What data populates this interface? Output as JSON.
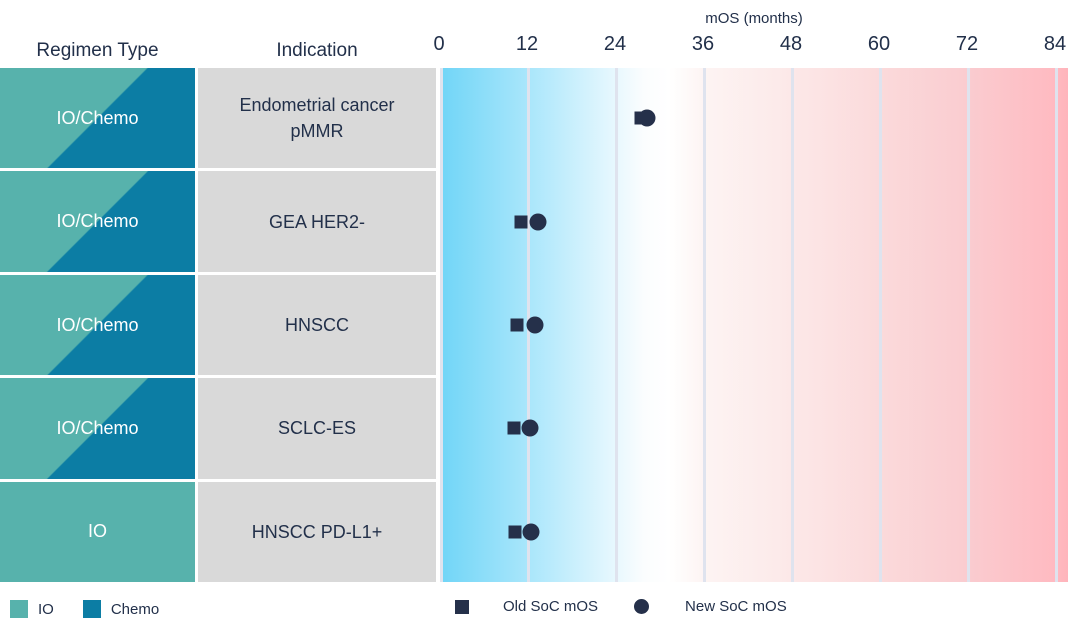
{
  "table": {
    "regimen_header": "Regimen Type",
    "indication_header": "Indication"
  },
  "rows": [
    {
      "regimen": "IO/Chemo",
      "type": "io_chemo",
      "indication": "Endometrial cancer pMMR"
    },
    {
      "regimen": "IO/Chemo",
      "type": "io_chemo",
      "indication": "GEA HER2-"
    },
    {
      "regimen": "IO/Chemo",
      "type": "io_chemo",
      "indication": "HNSCC"
    },
    {
      "regimen": "IO/Chemo",
      "type": "io_chemo",
      "indication": "SCLC-ES"
    },
    {
      "regimen": "IO",
      "type": "io",
      "indication": "HNSCC PD-L1+"
    }
  ],
  "legend": {
    "io_label": "IO",
    "chemo_label": "Chemo",
    "old_soc_label": "Old SoC mOS",
    "new_soc_label": "New SoC mOS"
  },
  "colors": {
    "io_teal": "#57B2AC",
    "chemo_blue": "#0C7DA4",
    "indication_gray": "#D9D9D9",
    "marker_navy": "#25304A",
    "text_navy": "#22304A",
    "gridline": "#DFE3EE",
    "gradient_left_cyan": "#70D5F7",
    "gradient_right_pink": "#FFB4BB"
  },
  "chart_data": {
    "type": "scatter",
    "orientation": "horizontal",
    "title": "mOS (months)",
    "x_axis": {
      "title": "mOS (months)",
      "ticks": [
        0,
        12,
        24,
        36,
        48,
        60,
        72,
        84
      ],
      "range": [
        0,
        84
      ],
      "grid": true
    },
    "categories": [
      "Endometrial cancer pMMR",
      "GEA HER2-",
      "HNSCC",
      "SCLC-ES",
      "HNSCC PD-L1+"
    ],
    "regimen_types": [
      "IO/Chemo",
      "IO/Chemo",
      "IO/Chemo",
      "IO/Chemo",
      "IO"
    ],
    "series": [
      {
        "name": "Old SoC mOS",
        "marker": "square",
        "values": [
          27.6,
          11.2,
          10.6,
          10.2,
          10.4
        ]
      },
      {
        "name": "New SoC mOS",
        "marker": "circle",
        "values": [
          28.3,
          13.5,
          13.1,
          12.4,
          12.5
        ]
      }
    ],
    "background_gradient": {
      "left": "#70D5F7",
      "middle": "#FFFFFF",
      "right": "#FFB4BB"
    },
    "legend_position": "bottom"
  }
}
